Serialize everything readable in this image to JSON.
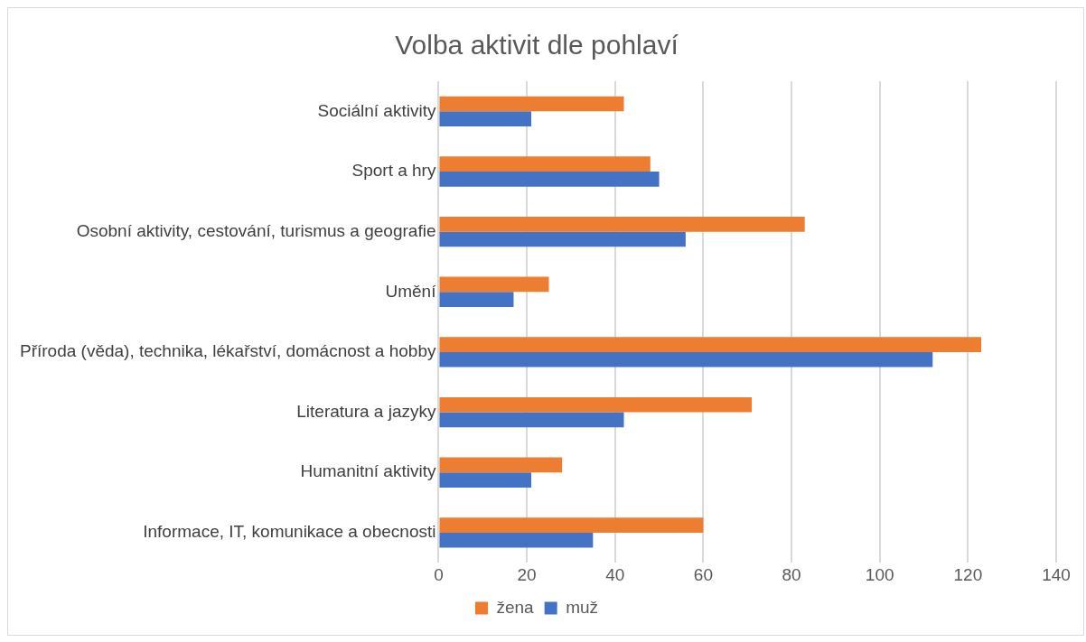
{
  "chart_data": {
    "type": "bar",
    "orientation": "horizontal",
    "title": "Volba aktivit dle pohlaví",
    "categories": [
      "Sociální aktivity",
      "Sport a hry",
      "Osobní aktivity, cestování, turismus a geografie",
      "Umění",
      "Příroda (věda), technika, lékařství, domácnost a hobby",
      "Literatura a jazyky",
      "Humanitní aktivity",
      "Informace, IT, komunikace a obecnosti"
    ],
    "series": [
      {
        "name": "žena",
        "color": "#ed7d31",
        "values": [
          42,
          48,
          83,
          25,
          123,
          71,
          28,
          60
        ]
      },
      {
        "name": "muž",
        "color": "#4472c4",
        "values": [
          21,
          50,
          56,
          17,
          112,
          42,
          21,
          35
        ]
      }
    ],
    "xlim": [
      0,
      140
    ],
    "xticks": [
      0,
      20,
      40,
      60,
      80,
      100,
      120,
      140
    ],
    "grid": "x",
    "legend": "bottom"
  }
}
